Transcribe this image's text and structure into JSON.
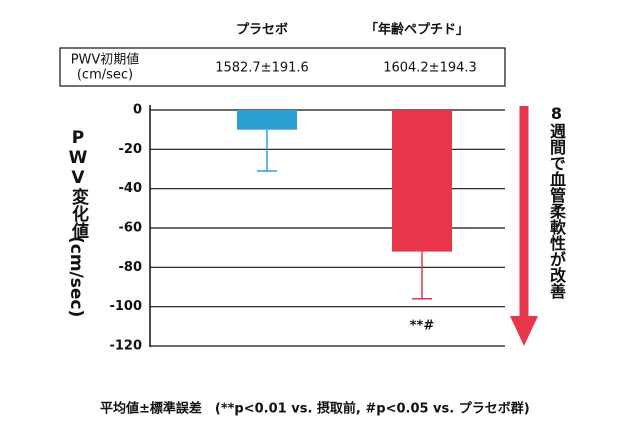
{
  "chart_data": {
    "type": "bar",
    "categories": [
      "プラセボ",
      "「年齢ペプチド」"
    ],
    "values": [
      -10,
      -72
    ],
    "errors": [
      21,
      24
    ],
    "colors": [
      "#2e9fd3",
      "#e8364a"
    ],
    "ylim": [
      -120,
      0
    ],
    "yticks": [
      0,
      -20,
      -40,
      -60,
      -80,
      -100,
      -120
    ],
    "grid": true,
    "y_label": "PWV変化値",
    "y_unit": "(cm/sec)",
    "baseline": {
      "label": [
        "PWV初期値",
        "(cm/sec)"
      ],
      "values": [
        "1582.7±191.6",
        "1604.2±194.3"
      ]
    },
    "annotations": [
      "**#"
    ],
    "side_note": "8週間で血管柔軟性が改善",
    "footnote": "平均値±標準誤差　(**p<0.01 vs. 摂取前, #p<0.05 vs. プラセボ群)"
  }
}
